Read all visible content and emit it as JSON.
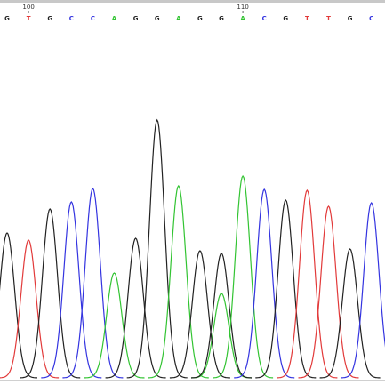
{
  "chart_data": {
    "type": "chromatogram",
    "bases": [
      "G",
      "T",
      "G",
      "C",
      "C",
      "A",
      "G",
      "G",
      "A",
      "G",
      "G",
      "A",
      "C",
      "G",
      "T",
      "T",
      "G",
      "C"
    ],
    "base_colors": {
      "A": "#33c433",
      "C": "#3434e0",
      "G": "#222222",
      "T": "#e23a3a"
    },
    "peak_heights": [
      163,
      155,
      190,
      198,
      213,
      118,
      157,
      290,
      216,
      143,
      140,
      227,
      212,
      200,
      211,
      193,
      145,
      197
    ],
    "secondary_peaks": [
      {
        "position": 10,
        "call": "A",
        "height": 95
      }
    ],
    "ylim": [
      0,
      300
    ],
    "position_ticks": [
      {
        "index": 1,
        "label": "100"
      },
      {
        "index": 11,
        "label": "110"
      }
    ]
  }
}
